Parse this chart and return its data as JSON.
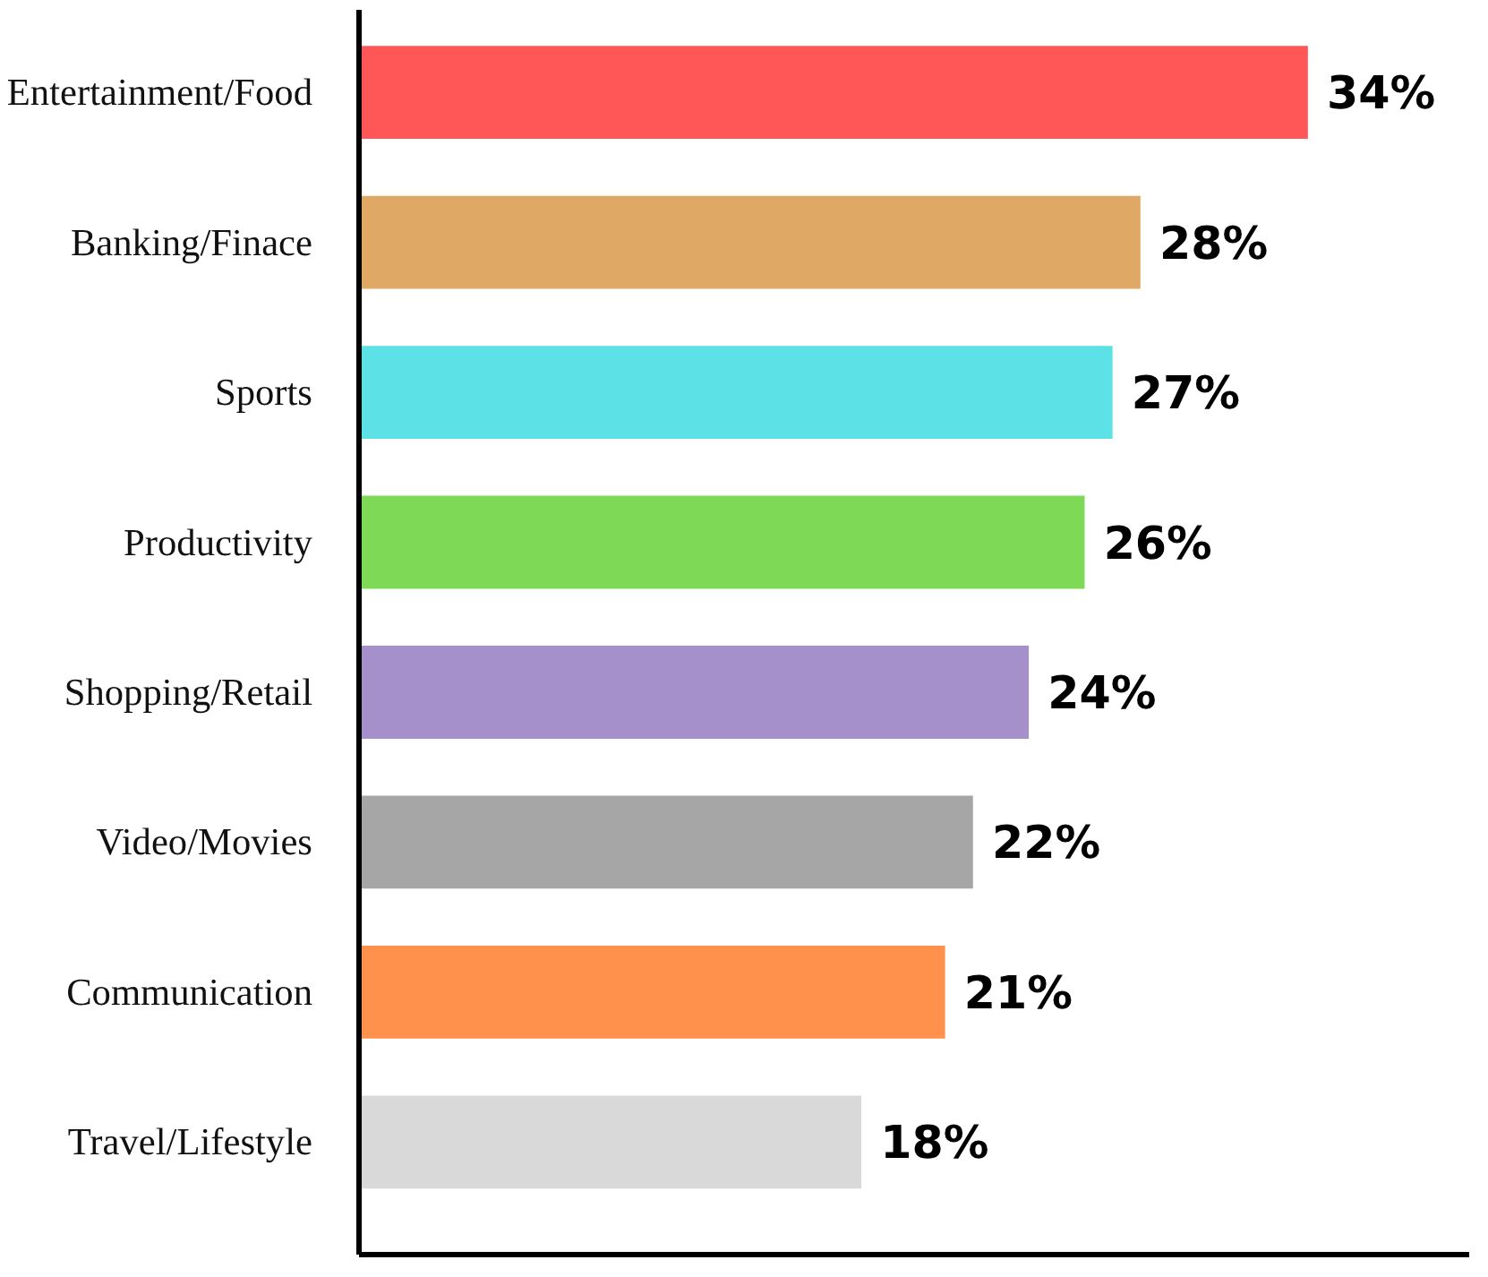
{
  "chart_data": {
    "type": "bar",
    "orientation": "horizontal",
    "categories": [
      "Entertainment/Food",
      "Banking/Finace",
      "Sports",
      "Productivity",
      "Shopping/Retail",
      "Video/Movies",
      "Communication",
      "Travel/Lifestyle"
    ],
    "values": [
      34,
      28,
      27,
      26,
      24,
      22,
      21,
      18
    ],
    "colors": [
      "#ff5757",
      "#e0a865",
      "#5ce1e6",
      "#7ed957",
      "#a690cb",
      "#a6a6a6",
      "#ff914d",
      "#d9d9d9"
    ],
    "value_labels": [
      "34%",
      "28%",
      "27%",
      "26%",
      "24%",
      "22%",
      "21%",
      "18%"
    ],
    "grid": false,
    "tick_labels": "y"
  }
}
